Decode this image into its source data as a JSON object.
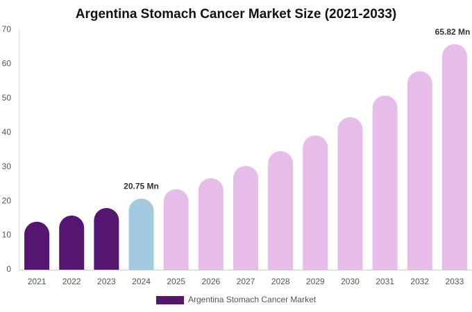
{
  "chart_data": {
    "type": "bar",
    "title": "Argentina Stomach Cancer Market Size (2021-2033)",
    "categories": [
      "2021",
      "2022",
      "2023",
      "2024",
      "2025",
      "2026",
      "2027",
      "2028",
      "2029",
      "2030",
      "2031",
      "2032",
      "2033"
    ],
    "series": [
      {
        "name": "Argentina Stomach Cancer Market",
        "color": "#54166e",
        "values": [
          14.0,
          15.8,
          18.0,
          20.75,
          23.5,
          26.7,
          30.3,
          34.6,
          39.2,
          44.5,
          50.8,
          57.9,
          65.82
        ],
        "colors": [
          "#54166e",
          "#54166e",
          "#54166e",
          "#a3cadf",
          "#e6bde8",
          "#e6bde8",
          "#e6bde8",
          "#e6bde8",
          "#e6bde8",
          "#e6bde8",
          "#e6bde8",
          "#e6bde8",
          "#e6bde8"
        ],
        "value_labels": [
          null,
          null,
          null,
          "20.75 Mn",
          null,
          null,
          null,
          null,
          null,
          null,
          null,
          null,
          "65.82 Mn"
        ]
      }
    ],
    "ylim": [
      0,
      70
    ],
    "yticks": [
      0,
      10,
      20,
      30,
      40,
      50,
      60,
      70
    ],
    "grid": false,
    "legend": "bottom"
  }
}
